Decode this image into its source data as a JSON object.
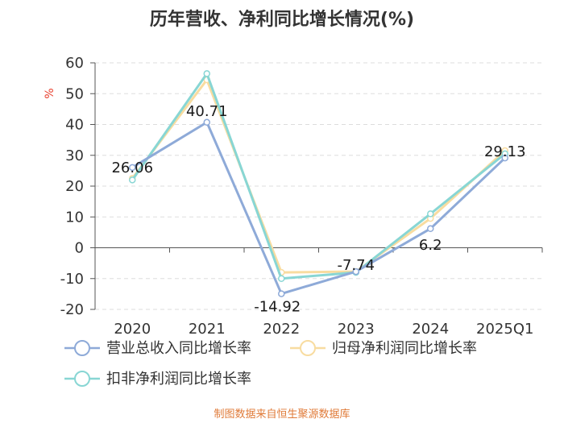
{
  "chart_data": {
    "type": "line",
    "title": "历年营收、净利同比增长情况(%)",
    "ylabel": "%",
    "categories": [
      "2020",
      "2021",
      "2022",
      "2023",
      "2024",
      "2025Q1"
    ],
    "ylim": [
      -20,
      60
    ],
    "yticks": [
      60,
      50,
      40,
      30,
      20,
      10,
      0,
      -10,
      -20
    ],
    "grid": true,
    "legend_position": "bottom",
    "series": [
      {
        "name": "营业总收入同比增长率",
        "values": [
          26.06,
          40.71,
          -14.92,
          -7.74,
          6.2,
          29.13
        ],
        "color": "#8eaad8",
        "labeled": true
      },
      {
        "name": "归母净利润同比增长率",
        "values": [
          22.5,
          54.5,
          -8.0,
          -7.7,
          9.5,
          31.5
        ],
        "color": "#f8dca0",
        "labeled": false
      },
      {
        "name": "扣非净利润同比增长率",
        "values": [
          22.0,
          56.5,
          -10.0,
          -8.0,
          11.0,
          30.5
        ],
        "color": "#88d6d4",
        "labeled": false
      }
    ],
    "data_labels": [
      "26.06",
      "40.71",
      "-14.92",
      "-7.74",
      "6.2",
      "29.13"
    ]
  },
  "source_note": "制图数据来自恒生聚源数据库"
}
